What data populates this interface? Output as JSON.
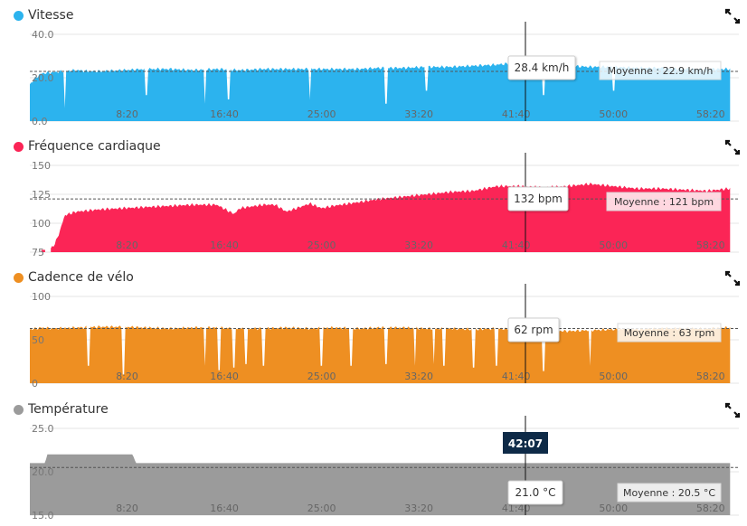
{
  "x_axis": {
    "ticks": [
      "8:20",
      "16:40",
      "25:00",
      "33:20",
      "41:40",
      "50:00",
      "58:20"
    ]
  },
  "cursor": {
    "time_label": "42:07"
  },
  "panels": [
    {
      "key": "speed",
      "title": "Vitesse",
      "color": "#2cb3ee",
      "icon": "expand-icon",
      "y_ticks": [
        "40.0",
        "20.0",
        "0.0"
      ],
      "cursor_value": "28.4 km/h",
      "average_label": "Moyenne : 22.9 km/h"
    },
    {
      "key": "heart-rate",
      "title": "Fréquence cardiaque",
      "color": "#fb2556",
      "icon": "expand-icon",
      "y_ticks": [
        "150",
        "125",
        "100",
        "75"
      ],
      "cursor_value": "132 bpm",
      "average_label": "Moyenne : 121 bpm"
    },
    {
      "key": "cadence",
      "title": "Cadence de vélo",
      "color": "#ee8f22",
      "icon": "expand-icon",
      "y_ticks": [
        "100",
        "50",
        "0"
      ],
      "cursor_value": "62 rpm",
      "average_label": "Moyenne : 63 rpm"
    },
    {
      "key": "temperature",
      "title": "Température",
      "color": "#9b9b9b",
      "icon": "expand-icon",
      "y_ticks": [
        "25.0",
        "20.0",
        "15.0"
      ],
      "cursor_value": "21.0 °C",
      "average_label": "Moyenne : 20.5 °C"
    }
  ],
  "chart_data": [
    {
      "type": "area",
      "title": "Vitesse",
      "unit": "km/h",
      "x": [
        0,
        0.5,
        1,
        2,
        3,
        4,
        5,
        6,
        8,
        10,
        12,
        14,
        16,
        18,
        20,
        22,
        24,
        26,
        28,
        30,
        32,
        34,
        36,
        38,
        40,
        42,
        44,
        46,
        48,
        50,
        52,
        54,
        56,
        58,
        60
      ],
      "values": [
        17,
        20,
        22,
        22.5,
        23,
        23.5,
        23,
        23,
        23.5,
        24,
        24,
        23.5,
        24,
        23.5,
        24,
        24,
        24,
        24,
        24,
        24.5,
        24.5,
        25,
        25,
        25.5,
        26,
        27,
        26.5,
        25.5,
        25,
        25,
        24.5,
        24.5,
        24,
        24,
        24
      ],
      "dips": [
        [
          3,
          6
        ],
        [
          10,
          12
        ],
        [
          15,
          8
        ],
        [
          17,
          10
        ],
        [
          24,
          10
        ],
        [
          30.5,
          8
        ],
        [
          34,
          14
        ],
        [
          44,
          12
        ],
        [
          50,
          14
        ]
      ],
      "ylim": [
        0,
        40
      ],
      "average": 22.9,
      "cursor_x": 42.12,
      "cursor_value": 28.4
    },
    {
      "type": "area",
      "title": "Fréquence cardiaque",
      "unit": "bpm",
      "x": [
        1.8,
        2,
        2.4,
        3,
        4,
        5,
        6,
        8,
        10,
        12,
        14,
        16,
        17.5,
        18,
        20,
        21,
        22,
        24,
        25,
        26,
        28,
        30,
        32,
        34,
        36,
        38,
        40,
        42,
        44,
        46,
        48,
        50,
        52,
        54,
        56,
        58,
        60
      ],
      "values": [
        78,
        80,
        88,
        107,
        110,
        111,
        112,
        113,
        114,
        115,
        116,
        116,
        108,
        113,
        116,
        116,
        110,
        117,
        113,
        115,
        118,
        121,
        123,
        125,
        127,
        128,
        132,
        132,
        131,
        132,
        134,
        132,
        130,
        130,
        129,
        128,
        130
      ],
      "ylim": [
        75,
        150
      ],
      "average": 121,
      "cursor_x": 42.12,
      "cursor_value": 132
    },
    {
      "type": "area",
      "title": "Cadence de vélo",
      "unit": "rpm",
      "x": [
        0,
        1,
        2,
        4,
        6,
        8,
        10,
        12,
        14,
        16,
        18,
        20,
        22,
        24,
        26,
        28,
        30,
        32,
        34,
        36,
        38,
        40,
        42,
        44,
        46,
        48,
        50,
        52,
        54,
        56,
        58,
        60
      ],
      "values": [
        62,
        64,
        63,
        64,
        65,
        65,
        64,
        63,
        64,
        64,
        63,
        63,
        64,
        63,
        64,
        63,
        64,
        64,
        63,
        63,
        62,
        63,
        62,
        61,
        60,
        61,
        62,
        62,
        63,
        63,
        63,
        64
      ],
      "dips": [
        [
          5,
          20
        ],
        [
          8,
          10
        ],
        [
          15,
          20
        ],
        [
          16.2,
          15
        ],
        [
          17.5,
          18
        ],
        [
          18.5,
          22
        ],
        [
          20,
          20
        ],
        [
          25,
          20
        ],
        [
          27.5,
          20
        ],
        [
          30.5,
          22
        ],
        [
          33,
          20
        ],
        [
          34.6,
          22
        ],
        [
          35.5,
          20
        ],
        [
          38,
          18
        ],
        [
          40,
          20
        ],
        [
          44,
          14
        ],
        [
          48,
          20
        ]
      ],
      "ylim": [
        0,
        100
      ],
      "average": 63,
      "cursor_x": 42.12,
      "cursor_value": 62
    },
    {
      "type": "area",
      "title": "Température",
      "unit": "°C",
      "x": [
        0,
        1.3,
        1.5,
        8.8,
        9.1,
        60
      ],
      "values": [
        21.0,
        21.0,
        22.0,
        22.0,
        21.0,
        21.0
      ],
      "ylim": [
        15,
        25
      ],
      "average": 20.5,
      "cursor_x": 42.12,
      "cursor_value": 21.0
    }
  ]
}
